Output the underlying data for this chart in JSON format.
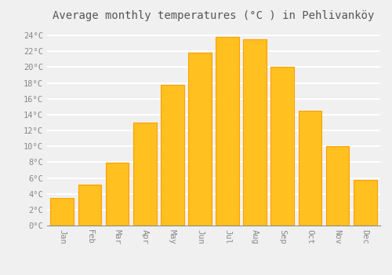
{
  "title": "Average monthly temperatures (°C ) in Pehlivanköy",
  "months": [
    "Jan",
    "Feb",
    "Mar",
    "Apr",
    "May",
    "Jun",
    "Jul",
    "Aug",
    "Sep",
    "Oct",
    "Nov",
    "Dec"
  ],
  "values": [
    3.5,
    5.2,
    7.9,
    13.0,
    17.8,
    21.8,
    23.8,
    23.5,
    20.0,
    14.5,
    10.0,
    5.8
  ],
  "bar_color": "#FFC020",
  "bar_edge_color": "#FFA000",
  "background_color": "#F0F0F0",
  "plot_bg_color": "#F0F0F0",
  "grid_color": "#FFFFFF",
  "label_color": "#888888",
  "title_color": "#555555",
  "ylim": [
    0,
    25
  ],
  "ytick_step": 2,
  "title_fontsize": 10,
  "tick_fontsize": 7.5
}
